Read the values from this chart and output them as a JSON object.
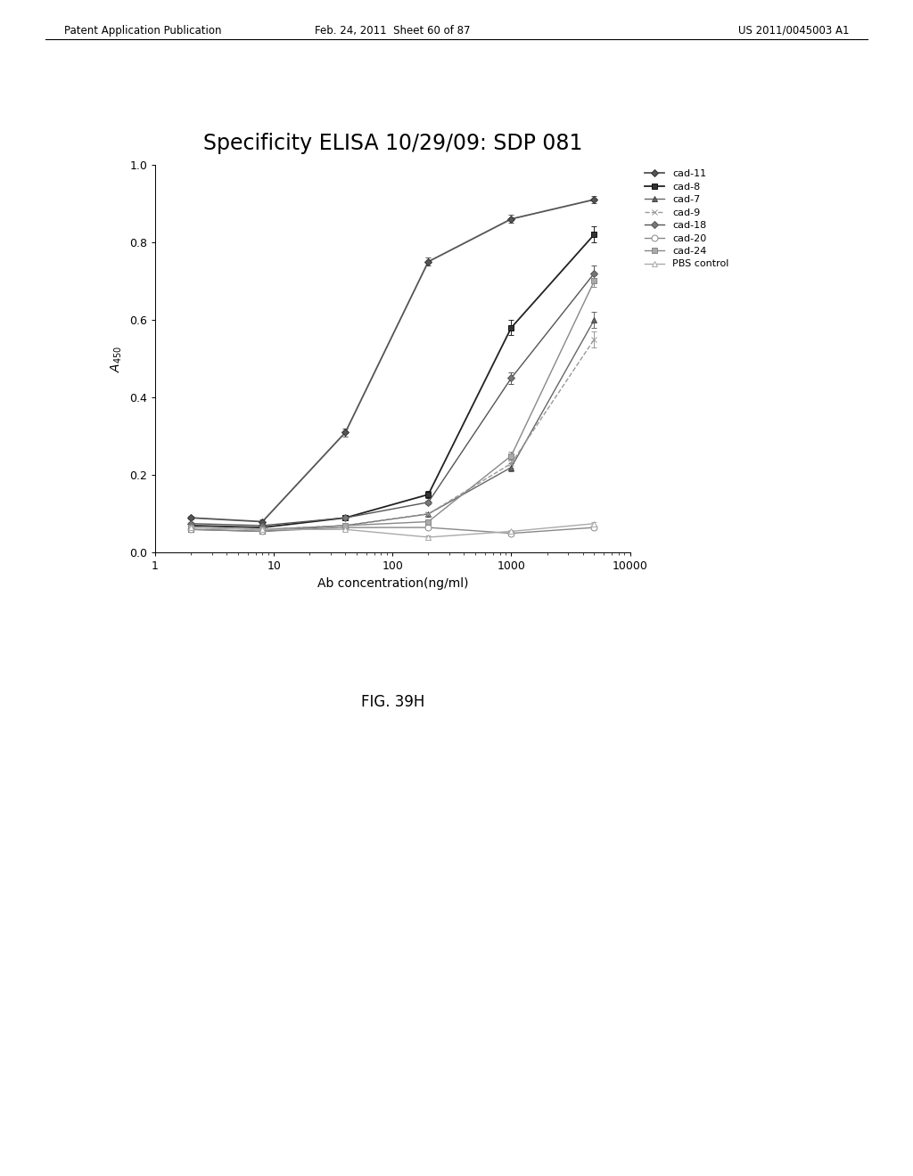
{
  "title": "Specificity ELISA 10/29/09: SDP 081",
  "xlabel": "Ab concentration(ng/ml)",
  "ylabel": "A_{450}",
  "xlim": [
    1,
    10000
  ],
  "ylim": [
    0.0,
    1.0
  ],
  "series": {
    "cad-11": {
      "x": [
        2,
        8,
        40,
        200,
        1000,
        5000
      ],
      "y": [
        0.09,
        0.08,
        0.31,
        0.75,
        0.86,
        0.91
      ],
      "yerr": [
        0.005,
        0.005,
        0.01,
        0.01,
        0.01,
        0.01
      ],
      "color": "#555555",
      "marker": "D",
      "linestyle": "-",
      "linewidth": 1.5,
      "markersize": 5
    },
    "cad-8": {
      "x": [
        2,
        8,
        40,
        200,
        1000,
        5000
      ],
      "y": [
        0.07,
        0.065,
        0.09,
        0.15,
        0.58,
        0.82
      ],
      "yerr": [
        0.005,
        0.005,
        0.005,
        0.01,
        0.02,
        0.02
      ],
      "color": "#222222",
      "marker": "s",
      "linestyle": "-",
      "linewidth": 1.5,
      "markersize": 6
    },
    "cad-7": {
      "x": [
        2,
        8,
        40,
        200,
        1000,
        5000
      ],
      "y": [
        0.06,
        0.055,
        0.07,
        0.1,
        0.22,
        0.6
      ],
      "yerr": [
        0.005,
        0.005,
        0.005,
        0.005,
        0.01,
        0.02
      ],
      "color": "#777777",
      "marker": "^",
      "linestyle": "-",
      "linewidth": 1.0,
      "markersize": 5
    },
    "cad-9": {
      "x": [
        2,
        8,
        40,
        200,
        1000,
        5000
      ],
      "y": [
        0.065,
        0.06,
        0.07,
        0.1,
        0.23,
        0.55
      ],
      "yerr": [
        0.005,
        0.005,
        0.005,
        0.005,
        0.01,
        0.02
      ],
      "color": "#aaaaaa",
      "marker": "x",
      "linestyle": "--",
      "linewidth": 1.0,
      "markersize": 6
    },
    "cad-18": {
      "x": [
        2,
        8,
        40,
        200,
        1000,
        5000
      ],
      "y": [
        0.075,
        0.07,
        0.09,
        0.13,
        0.45,
        0.72
      ],
      "yerr": [
        0.005,
        0.005,
        0.005,
        0.005,
        0.015,
        0.02
      ],
      "color": "#555555",
      "marker": "D",
      "linestyle": "-",
      "linewidth": 1.0,
      "markersize": 5
    },
    "cad-20": {
      "x": [
        2,
        8,
        40,
        200,
        1000,
        5000
      ],
      "y": [
        0.06,
        0.055,
        0.065,
        0.065,
        0.05,
        0.065
      ],
      "yerr": [
        0.003,
        0.003,
        0.003,
        0.003,
        0.003,
        0.005
      ],
      "color": "#888888",
      "marker": "o",
      "linestyle": "-",
      "linewidth": 1.0,
      "markersize": 6
    },
    "cad-24": {
      "x": [
        2,
        8,
        40,
        200,
        1000,
        5000
      ],
      "y": [
        0.065,
        0.06,
        0.07,
        0.08,
        0.25,
        0.7
      ],
      "yerr": [
        0.003,
        0.003,
        0.003,
        0.003,
        0.01,
        0.015
      ],
      "color": "#888888",
      "marker": "s",
      "linestyle": "-",
      "linewidth": 1.0,
      "markersize": 5
    },
    "PBS control": {
      "x": [
        2,
        8,
        40,
        200,
        1000,
        5000
      ],
      "y": [
        0.065,
        0.06,
        0.06,
        0.04,
        0.055,
        0.075
      ],
      "yerr": [
        0.003,
        0.003,
        0.003,
        0.005,
        0.003,
        0.005
      ],
      "color": "#aaaaaa",
      "marker": "^",
      "linestyle": "-",
      "linewidth": 1.0,
      "markersize": 5
    }
  },
  "background_color": "#ffffff",
  "fig_caption": "FIG. 39H",
  "header_left": "Patent Application Publication",
  "header_center": "Feb. 24, 2011  Sheet 60 of 87",
  "header_right": "US 2011/0045003 A1"
}
